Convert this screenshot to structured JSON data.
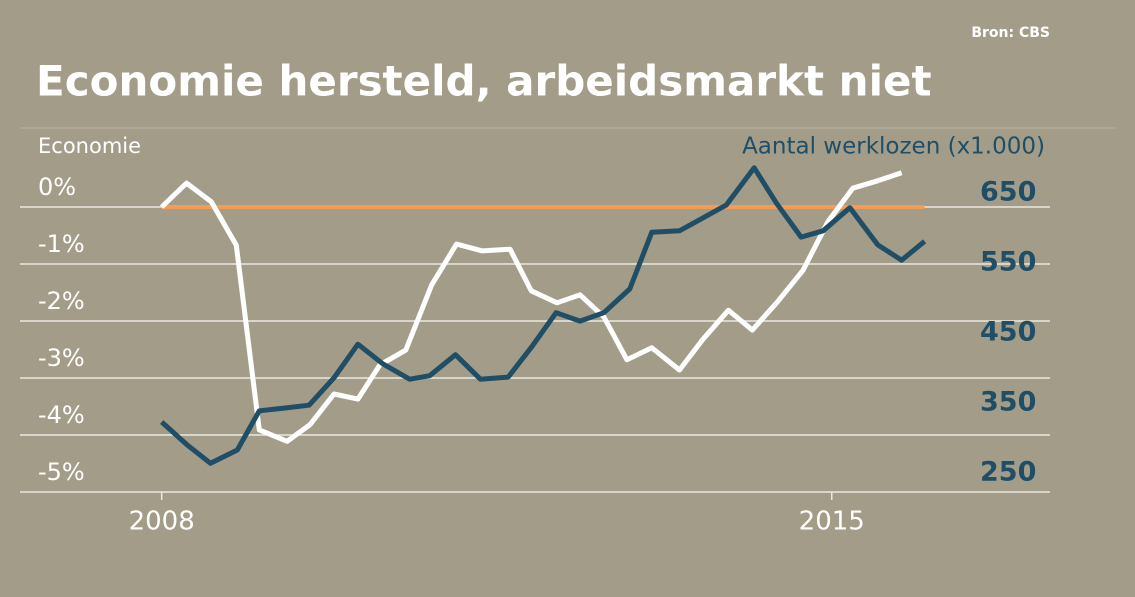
{
  "chart_data": {
    "type": "line",
    "title": "Economie hersteld, arbeidsmarkt niet",
    "source": "Bron: CBS",
    "background": "#a39c88",
    "grid": true,
    "grid_color": "#ebe8df",
    "zero_line_color": "#f29c56",
    "xlim": [
      2006.52,
      2017.28
    ],
    "xticks": [
      2008,
      2015
    ],
    "ylim": [
      -5,
      0.75
    ],
    "yticks": [
      {
        "value": 0,
        "label": "0%"
      },
      {
        "value": -1,
        "label": "-1%"
      },
      {
        "value": -2,
        "label": "-2%"
      },
      {
        "value": -3,
        "label": "-3%"
      },
      {
        "value": -4,
        "label": "-4%"
      },
      {
        "value": -5,
        "label": "-5%"
      }
    ],
    "y2lim": [
      223,
      691
    ],
    "y2ticks": [
      650,
      550,
      450,
      350,
      250
    ],
    "series": [
      {
        "name": "Economie",
        "color": "#ffffff",
        "x": [
          2008.0,
          2008.26,
          2008.52,
          2008.78,
          2009.02,
          2009.31,
          2009.55,
          2009.8,
          2010.05,
          2010.28,
          2010.55,
          2010.82,
          2011.08,
          2011.35,
          2011.64,
          2011.86,
          2012.13,
          2012.37,
          2012.62,
          2012.86,
          2013.12,
          2013.41,
          2013.65,
          2013.92,
          2014.17,
          2014.44,
          2014.7,
          2014.96,
          2015.22,
          2015.48,
          2015.73
        ],
        "values": [
          0,
          0.42,
          0.09,
          -0.67,
          -3.91,
          -4.11,
          -3.82,
          -3.28,
          -3.37,
          -2.77,
          -2.51,
          -1.37,
          -0.65,
          -0.77,
          -0.74,
          -1.47,
          -1.68,
          -1.54,
          -1.93,
          -2.68,
          -2.47,
          -2.86,
          -2.33,
          -1.81,
          -2.16,
          -1.65,
          -1.11,
          -0.26,
          0.33,
          0.46,
          0.6
        ]
      },
      {
        "name": "Aantal werklozen (x1.000)",
        "color": "#1f4e66",
        "axis": "y2",
        "x": [
          2008.0,
          2008.26,
          2008.51,
          2008.79,
          2009.02,
          2009.29,
          2009.54,
          2009.8,
          2010.05,
          2010.31,
          2010.59,
          2010.8,
          2011.07,
          2011.33,
          2011.62,
          2011.87,
          2012.12,
          2012.37,
          2012.62,
          2012.89,
          2013.12,
          2013.41,
          2013.65,
          2013.9,
          2014.19,
          2014.42,
          2014.68,
          2014.91,
          2015.19,
          2015.48,
          2015.73,
          2015.97
        ],
        "values": [
          323,
          291,
          264,
          283,
          339,
          343,
          347,
          386,
          434,
          406,
          384,
          389,
          419,
          384,
          387,
          431,
          479,
          467,
          479,
          513,
          594,
          596,
          614,
          633,
          686,
          636,
          587,
          596,
          629,
          576,
          554,
          581
        ]
      }
    ]
  }
}
